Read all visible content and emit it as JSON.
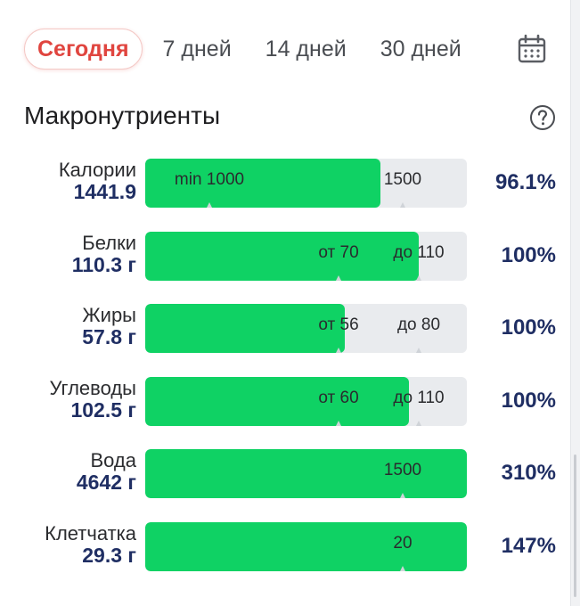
{
  "tabs": [
    {
      "label": "Сегодня",
      "active": true
    },
    {
      "label": "7 дней",
      "active": false
    },
    {
      "label": "14 дней",
      "active": false
    },
    {
      "label": "30 дней",
      "active": false
    }
  ],
  "section": {
    "title": "Макронутриенты"
  },
  "icons": {
    "calendar": "calendar-icon",
    "help": "help-circle-icon"
  },
  "colors": {
    "accent": "#e0453f",
    "fill": "#0fd264",
    "track": "#e9ebee",
    "value": "#1f2e63"
  },
  "nutrients": [
    {
      "name": "Калории",
      "value": "1441.9",
      "percent": "96.1%",
      "fill_fraction": 0.73,
      "markers": [
        {
          "text": "min 1000",
          "pos": 0.2
        },
        {
          "text": "1500",
          "pos": 0.8
        }
      ],
      "ticks": [
        0.2,
        0.8
      ]
    },
    {
      "name": "Белки",
      "value": "110.3 г",
      "percent": "100%",
      "fill_fraction": 0.85,
      "markers": [
        {
          "text": "от 70",
          "pos": 0.6
        },
        {
          "text": "до 110",
          "pos": 0.85
        }
      ],
      "ticks": [
        0.6,
        0.85
      ]
    },
    {
      "name": "Жиры",
      "value": "57.8 г",
      "percent": "100%",
      "fill_fraction": 0.62,
      "markers": [
        {
          "text": "от 56",
          "pos": 0.6
        },
        {
          "text": "до 80",
          "pos": 0.85
        }
      ],
      "ticks": [
        0.6,
        0.85
      ]
    },
    {
      "name": "Углеводы",
      "value": "102.5 г",
      "percent": "100%",
      "fill_fraction": 0.82,
      "markers": [
        {
          "text": "от 60",
          "pos": 0.6
        },
        {
          "text": "до 110",
          "pos": 0.85
        }
      ],
      "ticks": [
        0.6,
        0.85
      ]
    },
    {
      "name": "Вода",
      "value": "4642 г",
      "percent": "310%",
      "fill_fraction": 1.0,
      "markers": [
        {
          "text": "1500",
          "pos": 0.8
        }
      ],
      "ticks": [
        0.8
      ]
    },
    {
      "name": "Клетчатка",
      "value": "29.3 г",
      "percent": "147%",
      "fill_fraction": 1.0,
      "markers": [
        {
          "text": "20",
          "pos": 0.8
        }
      ],
      "ticks": [
        0.8
      ]
    }
  ]
}
